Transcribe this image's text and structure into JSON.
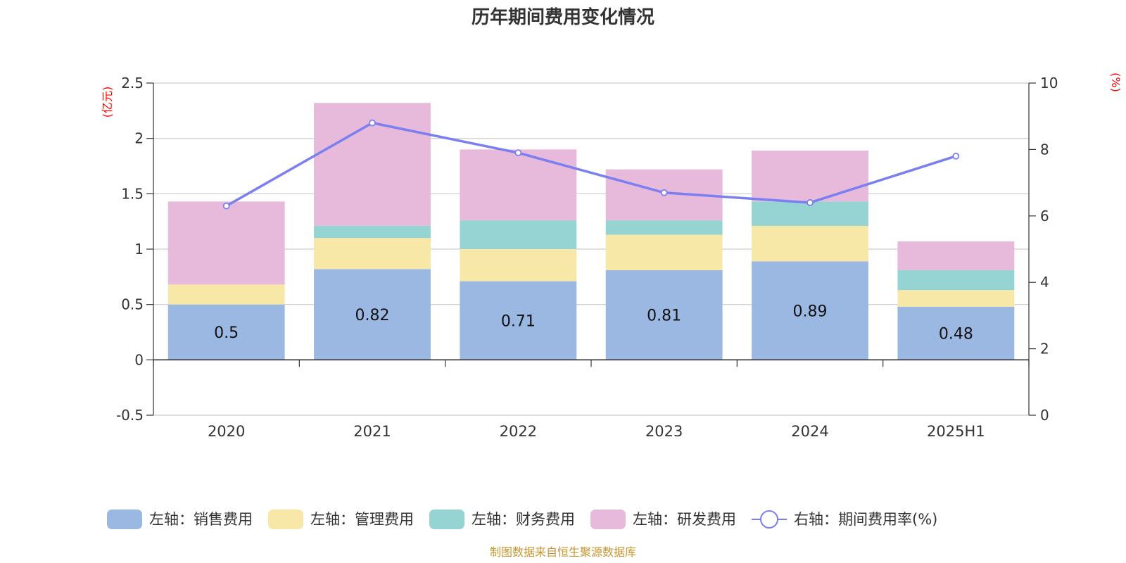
{
  "chart_data": {
    "type": "bar",
    "title": "历年期间费用变化情况",
    "categories": [
      "2020",
      "2021",
      "2022",
      "2023",
      "2024",
      "2025H1"
    ],
    "series": [
      {
        "name": "左轴：销售费用",
        "axis": "left",
        "type": "bar",
        "color": "#9bb8e3",
        "values": [
          0.5,
          0.82,
          0.71,
          0.81,
          0.89,
          0.48
        ],
        "labels": [
          "0.5",
          "0.82",
          "0.71",
          "0.81",
          "0.89",
          "0.48"
        ]
      },
      {
        "name": "左轴：管理费用",
        "axis": "left",
        "type": "bar",
        "color": "#f8e8a8",
        "values": [
          0.18,
          0.28,
          0.29,
          0.32,
          0.32,
          0.15
        ]
      },
      {
        "name": "左轴：财务费用",
        "axis": "left",
        "type": "bar",
        "color": "#96d4d4",
        "values": [
          0.0,
          0.11,
          0.26,
          0.13,
          0.22,
          0.18
        ]
      },
      {
        "name": "左轴：研发费用",
        "axis": "left",
        "type": "bar",
        "color": "#e7b9db",
        "values": [
          0.75,
          1.11,
          0.64,
          0.46,
          0.46,
          0.26
        ]
      },
      {
        "name": "右轴：期间费用率(%)",
        "axis": "right",
        "type": "line",
        "color": "#7b7ff0",
        "values": [
          6.3,
          8.8,
          7.9,
          6.7,
          6.4,
          7.8
        ]
      }
    ],
    "y_left": {
      "unit": "(亿元)",
      "range": [
        -0.5,
        2.5
      ],
      "ticks": [
        -0.5,
        0,
        0.5,
        1,
        1.5,
        2,
        2.5
      ],
      "tick_labels": [
        "-0.5",
        "0",
        "0.5",
        "1",
        "1.5",
        "2",
        "2.5"
      ]
    },
    "y_right": {
      "unit": "(%)",
      "range": [
        0,
        10
      ],
      "ticks": [
        0,
        2,
        4,
        6,
        8,
        10
      ],
      "tick_labels": [
        "0",
        "2",
        "4",
        "6",
        "8",
        "10"
      ]
    },
    "grid": true,
    "legend_position": "bottom",
    "source": "制图数据来自恒生聚源数据库"
  }
}
